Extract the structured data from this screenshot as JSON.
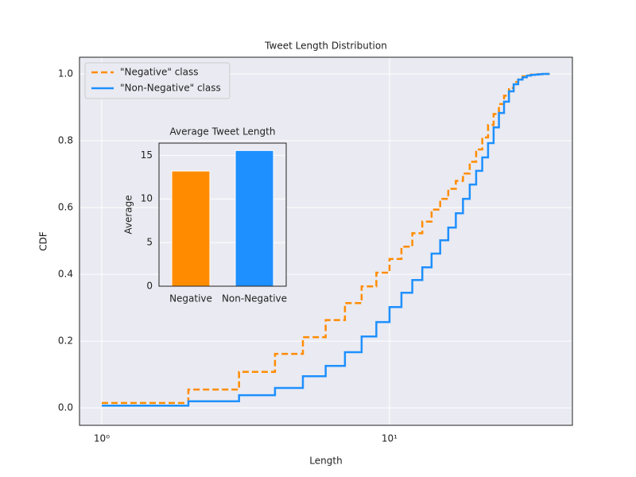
{
  "chart_data": [
    {
      "type": "line",
      "title": "Tweet Length Distribution",
      "x_label": "Length",
      "y_label": "CDF",
      "drawstyle": "steps-post",
      "log_x": true,
      "grid": true,
      "legend": "upper left",
      "x": [
        1,
        2,
        3,
        4,
        5,
        6,
        7,
        8,
        9,
        10,
        11,
        12,
        13,
        14,
        15,
        16,
        17,
        18,
        19,
        20,
        21,
        22,
        23,
        24,
        25,
        26,
        27,
        28,
        29,
        30,
        31,
        32,
        33,
        34,
        35,
        36
      ],
      "series": [
        {
          "name": "\"Negative\" class",
          "color": "#ff8c00",
          "linestyle": "dashed",
          "values": [
            0.015,
            0.055,
            0.108,
            0.162,
            0.212,
            0.263,
            0.314,
            0.364,
            0.405,
            0.446,
            0.483,
            0.523,
            0.558,
            0.594,
            0.626,
            0.656,
            0.68,
            0.702,
            0.737,
            0.774,
            0.81,
            0.847,
            0.88,
            0.91,
            0.935,
            0.958,
            0.976,
            0.987,
            0.993,
            0.996,
            0.998,
            0.999,
            0.999,
            1.0,
            1.0,
            1.0
          ]
        },
        {
          "name": "\"Non-Negative\" class",
          "color": "#1e90ff",
          "linestyle": "solid",
          "values": [
            0.007,
            0.02,
            0.038,
            0.06,
            0.095,
            0.126,
            0.167,
            0.214,
            0.257,
            0.302,
            0.345,
            0.383,
            0.421,
            0.462,
            0.502,
            0.54,
            0.583,
            0.626,
            0.669,
            0.71,
            0.75,
            0.793,
            0.84,
            0.883,
            0.917,
            0.948,
            0.969,
            0.983,
            0.99,
            0.995,
            0.997,
            0.998,
            0.999,
            1.0,
            1.0,
            1.0
          ]
        }
      ],
      "xlim": [
        0.837,
        43.2
      ],
      "ylim": [
        -0.052,
        1.05
      ],
      "xticks": [
        {
          "value": 1,
          "label": "10⁰"
        },
        {
          "value": 10,
          "label": "10¹"
        }
      ],
      "yticks": [
        {
          "value": 0,
          "label": "0.0"
        },
        {
          "value": 0.2,
          "label": "0.2"
        },
        {
          "value": 0.4,
          "label": "0.4"
        },
        {
          "value": 0.6,
          "label": "0.6"
        },
        {
          "value": 0.8,
          "label": "0.8"
        },
        {
          "value": 1,
          "label": "1.0"
        }
      ]
    },
    {
      "type": "bar",
      "title": "Average Tweet Length",
      "y_label": "Average",
      "grid": true,
      "categories": [
        "Negative",
        "Non-Negative"
      ],
      "values": [
        13.2,
        15.55
      ],
      "colors": [
        "#ff8c00",
        "#1e90ff"
      ],
      "ylim": [
        0,
        16.4
      ],
      "yticks": [
        0,
        5,
        10,
        15
      ]
    }
  ]
}
